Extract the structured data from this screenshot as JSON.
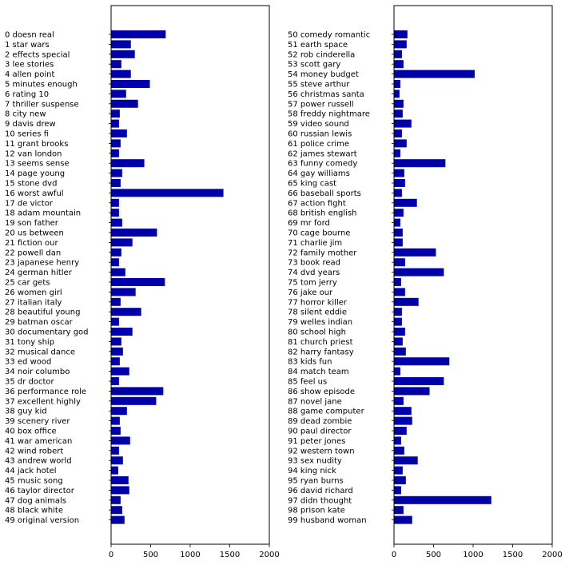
{
  "chart_data": [
    {
      "type": "bar",
      "orientation": "horizontal",
      "title": "",
      "xlabel": "",
      "ylabel": "",
      "xlim": [
        0,
        2000
      ],
      "xticks": [
        "0",
        "500",
        "1000",
        "1500",
        "2000"
      ],
      "bar_color": "#0000aa",
      "grid": false,
      "categories": [
        "0 doesn real",
        "1 star wars",
        "2 effects special",
        "3 lee stories",
        "4 allen point",
        "5 minutes enough",
        "6 rating 10",
        "7 thriller suspense",
        "8 city new",
        "9 davis drew",
        "10 series fi",
        "11 grant brooks",
        "12 van london",
        "13 seems sense",
        "14 page young",
        "15 stone dvd",
        "16 worst awful",
        "17 de victor",
        "18 adam mountain",
        "19 son father",
        "20 us between",
        "21 fiction our",
        "22 powell dan",
        "23 japanese henry",
        "24 german hitler",
        "25 car gets",
        "26 women girl",
        "27 italian italy",
        "28 beautiful young",
        "29 batman oscar",
        "30 documentary god",
        "31 tony ship",
        "32 musical dance",
        "33 ed wood",
        "34 noir columbo",
        "35 dr doctor",
        "36 performance role",
        "37 excellent highly",
        "38 guy kid",
        "39 scenery river",
        "40 box office",
        "41 war american",
        "42 wind robert",
        "43 andrew world",
        "44 jack hotel",
        "45 music song",
        "46 taylor director",
        "47 dog animals",
        "48 black white",
        "49 original version"
      ],
      "values": [
        690,
        250,
        300,
        130,
        250,
        490,
        190,
        340,
        110,
        100,
        200,
        120,
        100,
        420,
        140,
        120,
        1420,
        100,
        100,
        140,
        580,
        270,
        130,
        100,
        180,
        680,
        310,
        120,
        380,
        100,
        270,
        130,
        150,
        110,
        230,
        100,
        660,
        570,
        200,
        110,
        120,
        240,
        100,
        150,
        90,
        220,
        230,
        120,
        140,
        170
      ]
    },
    {
      "type": "bar",
      "orientation": "horizontal",
      "title": "",
      "xlabel": "",
      "ylabel": "",
      "xlim": [
        0,
        2000
      ],
      "xticks": [
        "0",
        "500",
        "1000",
        "1500",
        "2000"
      ],
      "bar_color": "#0000aa",
      "grid": false,
      "categories": [
        "50 comedy romantic",
        "51 earth space",
        "52 rob cinderella",
        "53 scott gary",
        "54 money budget",
        "55 steve arthur",
        "56 christmas santa",
        "57 power russell",
        "58 freddy nightmare",
        "59 video sound",
        "60 russian lewis",
        "61 police crime",
        "62 james stewart",
        "63 funny comedy",
        "64 gay williams",
        "65 king cast",
        "66 baseball sports",
        "67 action fight",
        "68 british english",
        "69 mr ford",
        "70 cage bourne",
        "71 charlie jim",
        "72 family mother",
        "73 book read",
        "74 dvd years",
        "75 tom jerry",
        "76 jake our",
        "77 horror killer",
        "78 silent eddie",
        "79 welles indian",
        "80 school high",
        "81 church priest",
        "82 harry fantasy",
        "83 kids fun",
        "84 match team",
        "85 feel us",
        "86 show episode",
        "87 novel jane",
        "88 game computer",
        "89 dead zombie",
        "90 paul director",
        "91 peter jones",
        "92 western town",
        "93 sex nudity",
        "94 king nick",
        "95 ryan burns",
        "96 david richard",
        "97 didn thought",
        "98 prison kate",
        "99 husband woman"
      ],
      "values": [
        170,
        160,
        100,
        120,
        1020,
        80,
        70,
        120,
        110,
        220,
        100,
        160,
        80,
        650,
        130,
        140,
        100,
        290,
        120,
        80,
        110,
        110,
        530,
        140,
        630,
        90,
        140,
        310,
        100,
        100,
        140,
        110,
        150,
        700,
        80,
        630,
        450,
        120,
        220,
        230,
        160,
        90,
        130,
        300,
        110,
        150,
        90,
        1230,
        120,
        230
      ]
    }
  ]
}
